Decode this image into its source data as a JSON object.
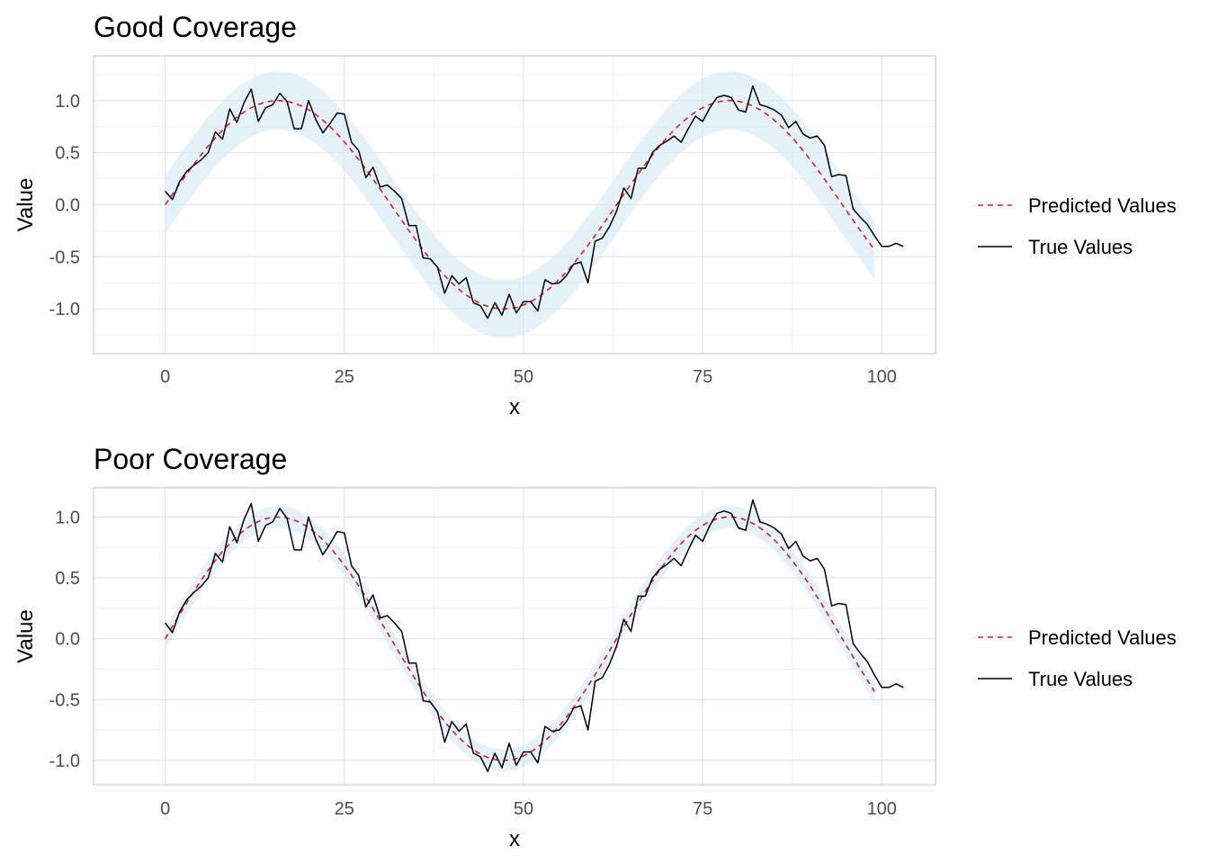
{
  "colors": {
    "predicted": "#e41a1c",
    "true_values": "#000000",
    "band": "#d6e9f7",
    "grid_major": "#e6e6e6",
    "grid_minor": "#f2f2f2",
    "panel_border": "#cccccc"
  },
  "chart_data": [
    {
      "type": "line",
      "title": "Good Coverage",
      "xlabel": "x",
      "ylabel": "Value",
      "xlim": [
        -10,
        107.5
      ],
      "ylim": [
        -1.43,
        1.43
      ],
      "xticks": [
        0,
        25,
        50,
        75,
        100
      ],
      "yticks": [
        -1.0,
        -0.5,
        0.0,
        0.5,
        1.0
      ],
      "xtick_labels": [
        "0",
        "25",
        "50",
        "75",
        "100"
      ],
      "ytick_labels": [
        "-1.0",
        "-0.5",
        "0.0",
        "0.5",
        "1.0"
      ],
      "grid": true,
      "legend_position": "right",
      "band_halfwidth": 0.28,
      "series": [
        {
          "name": "Predicted Values",
          "style": "dashed",
          "function": "sin(2*pi*x/63)",
          "x_range": [
            0,
            99
          ]
        },
        {
          "name": "True Values",
          "style": "solid",
          "x_start": 0,
          "values": [
            0.13,
            0.05,
            0.22,
            0.32,
            0.38,
            0.43,
            0.5,
            0.7,
            0.63,
            0.92,
            0.79,
            0.98,
            1.11,
            0.8,
            0.93,
            0.96,
            1.07,
            0.99,
            0.73,
            0.73,
            1.0,
            0.82,
            0.69,
            0.78,
            0.88,
            0.87,
            0.6,
            0.52,
            0.26,
            0.36,
            0.17,
            0.19,
            0.13,
            0.06,
            -0.2,
            -0.2,
            -0.51,
            -0.52,
            -0.6,
            -0.85,
            -0.68,
            -0.76,
            -0.7,
            -0.94,
            -0.97,
            -1.09,
            -0.94,
            -1.06,
            -0.86,
            -1.04,
            -0.93,
            -0.93,
            -1.02,
            -0.72,
            -0.76,
            -0.75,
            -0.68,
            -0.57,
            -0.55,
            -0.75,
            -0.35,
            -0.32,
            -0.21,
            -0.06,
            0.16,
            0.06,
            0.35,
            0.35,
            0.5,
            0.57,
            0.61,
            0.66,
            0.6,
            0.73,
            0.85,
            0.8,
            0.93,
            1.03,
            1.05,
            1.03,
            0.91,
            0.89,
            1.14,
            0.96,
            0.94,
            0.91,
            0.86,
            0.74,
            0.8,
            0.68,
            0.64,
            0.66,
            0.57,
            0.27,
            0.29,
            0.28,
            -0.04,
            -0.12,
            -0.19,
            -0.3,
            -0.4,
            -0.4,
            -0.37,
            -0.4
          ]
        }
      ]
    },
    {
      "type": "line",
      "title": "Poor Coverage",
      "xlabel": "x",
      "ylabel": "Value",
      "xlim": [
        -10,
        107.5
      ],
      "ylim": [
        -1.2,
        1.24
      ],
      "xticks": [
        0,
        25,
        50,
        75,
        100
      ],
      "yticks": [
        -1.0,
        -0.5,
        0.0,
        0.5,
        1.0
      ],
      "xtick_labels": [
        "0",
        "25",
        "50",
        "75",
        "100"
      ],
      "ytick_labels": [
        "-1.0",
        "-0.5",
        "0.0",
        "0.5",
        "1.0"
      ],
      "grid": true,
      "legend_position": "right",
      "band_halfwidth": 0.09,
      "series": [
        {
          "name": "Predicted Values",
          "style": "dashed",
          "function": "sin(2*pi*x/63)",
          "x_range": [
            0,
            99
          ]
        },
        {
          "name": "True Values",
          "style": "solid",
          "x_start": 0,
          "values": [
            0.13,
            0.05,
            0.22,
            0.32,
            0.38,
            0.43,
            0.5,
            0.7,
            0.63,
            0.92,
            0.79,
            0.98,
            1.11,
            0.8,
            0.93,
            0.96,
            1.07,
            0.99,
            0.73,
            0.73,
            1.0,
            0.82,
            0.69,
            0.78,
            0.88,
            0.87,
            0.6,
            0.52,
            0.26,
            0.36,
            0.17,
            0.19,
            0.13,
            0.06,
            -0.2,
            -0.2,
            -0.51,
            -0.52,
            -0.6,
            -0.85,
            -0.68,
            -0.76,
            -0.7,
            -0.94,
            -0.97,
            -1.09,
            -0.94,
            -1.06,
            -0.86,
            -1.04,
            -0.93,
            -0.93,
            -1.02,
            -0.72,
            -0.76,
            -0.75,
            -0.68,
            -0.57,
            -0.55,
            -0.75,
            -0.35,
            -0.32,
            -0.21,
            -0.06,
            0.16,
            0.06,
            0.35,
            0.35,
            0.5,
            0.57,
            0.61,
            0.66,
            0.6,
            0.73,
            0.85,
            0.8,
            0.93,
            1.03,
            1.05,
            1.03,
            0.91,
            0.89,
            1.14,
            0.96,
            0.94,
            0.91,
            0.86,
            0.74,
            0.8,
            0.68,
            0.64,
            0.66,
            0.57,
            0.27,
            0.29,
            0.28,
            -0.04,
            -0.12,
            -0.19,
            -0.3,
            -0.4,
            -0.4,
            -0.37,
            -0.4
          ]
        }
      ]
    }
  ]
}
